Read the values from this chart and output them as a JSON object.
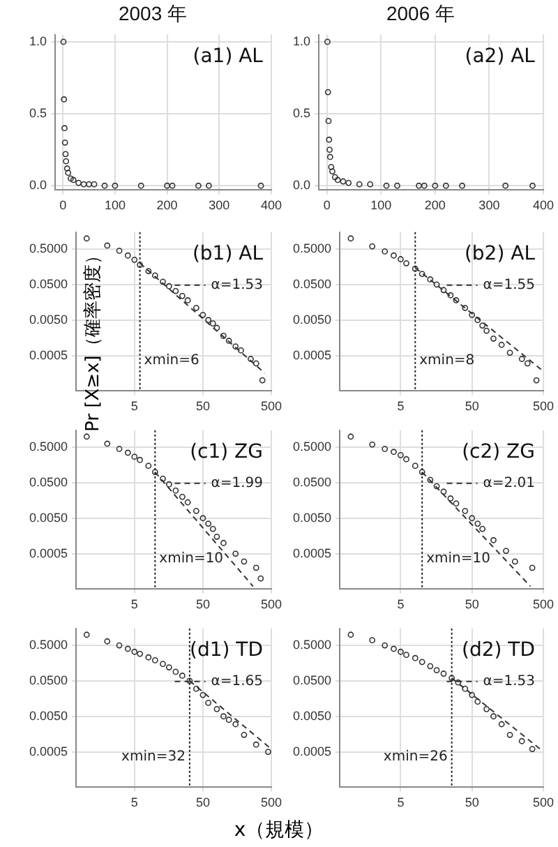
{
  "chart_data": [
    {
      "type": "scatter",
      "title": "2003 年",
      "annotations": [
        "(a1) AL"
      ],
      "xlim": [
        -15,
        400
      ],
      "ylim": [
        -0.03,
        1.05
      ],
      "xticks": [
        0,
        100,
        200,
        300,
        400
      ],
      "yticks": [
        {
          "value": 0,
          "label": "0.0"
        },
        {
          "value": 0.5,
          "label": "0.5"
        },
        {
          "value": 1,
          "label": "1.0"
        }
      ],
      "grid": true,
      "marker": "circle",
      "series": [
        {
          "color": "#333333",
          "x": [
            1,
            2,
            3,
            4,
            5,
            6,
            8,
            10,
            15,
            20,
            30,
            40,
            50,
            60,
            80,
            100,
            150,
            200,
            210,
            260,
            280,
            380
          ],
          "values": [
            1.0,
            0.6,
            0.4,
            0.3,
            0.22,
            0.17,
            0.12,
            0.09,
            0.05,
            0.04,
            0.02,
            0.01,
            0.01,
            0.01,
            0,
            0,
            0,
            0,
            0,
            0,
            0,
            0
          ]
        }
      ]
    },
    {
      "type": "scatter",
      "title": "2006 年",
      "annotations": [
        "(a2) AL"
      ],
      "xlim": [
        -15,
        400
      ],
      "ylim": [
        -0.03,
        1.05
      ],
      "xticks": [
        0,
        100,
        200,
        300,
        400
      ],
      "yticks": [
        {
          "value": 0,
          "label": "0.0"
        },
        {
          "value": 0.5,
          "label": "0.5"
        },
        {
          "value": 1,
          "label": "1.0"
        }
      ],
      "grid": true,
      "marker": "circle",
      "series": [
        {
          "color": "#333333",
          "x": [
            1,
            2,
            3,
            4,
            5,
            6,
            8,
            10,
            15,
            20,
            30,
            40,
            60,
            80,
            110,
            130,
            170,
            180,
            200,
            220,
            250,
            330,
            380
          ],
          "values": [
            1.0,
            0.65,
            0.45,
            0.32,
            0.25,
            0.2,
            0.13,
            0.1,
            0.06,
            0.04,
            0.03,
            0.02,
            0.01,
            0.01,
            0,
            0,
            0,
            0,
            0,
            0,
            0,
            0,
            0
          ]
        }
      ]
    },
    {
      "type": "scatter",
      "annotations": [
        "(b1) AL"
      ],
      "log": "xy",
      "xlim": [
        0.7,
        500
      ],
      "ylim": [
        5e-05,
        1.5
      ],
      "xticks": [
        5,
        50,
        500
      ],
      "yticks": [
        {
          "value": 0.5,
          "label": "0.5000"
        },
        {
          "value": 0.05,
          "label": "0.0500"
        },
        {
          "value": 0.005,
          "label": "0.0050"
        },
        {
          "value": 0.0005,
          "label": "0.0005"
        }
      ],
      "grid": true,
      "marker": "circle",
      "line_style": "dashed",
      "legend": "top right",
      "ref_lines": [
        {
          "axis": "x",
          "value": 6,
          "label": "xmin=6",
          "line_style": "dotted"
        }
      ],
      "series": [
        {
          "color": "#333333",
          "x": [
            1,
            2,
            3,
            4,
            5,
            6,
            8,
            10,
            13,
            16,
            20,
            25,
            30,
            40,
            50,
            60,
            70,
            80,
            100,
            120,
            150,
            180,
            250,
            300,
            370
          ],
          "values": [
            1.0,
            0.63,
            0.45,
            0.33,
            0.25,
            0.18,
            0.12,
            0.09,
            0.06,
            0.045,
            0.033,
            0.024,
            0.018,
            0.011,
            0.007,
            0.005,
            0.004,
            0.003,
            0.0018,
            0.0013,
            0.0009,
            0.0007,
            0.0004,
            0.0003,
            0.0001
          ]
        },
        {
          "type": "line",
          "name": "α=1.53",
          "marker": "none",
          "color": "#333333",
          "x": [
            6,
            400
          ],
          "values": [
            0.2,
            0.00016
          ]
        }
      ]
    },
    {
      "type": "scatter",
      "annotations": [
        "(b2) AL"
      ],
      "log": "xy",
      "xlim": [
        0.7,
        500
      ],
      "ylim": [
        5e-05,
        1.5
      ],
      "xticks": [
        5,
        50,
        500
      ],
      "yticks": [
        {
          "value": 0.5,
          "label": "0.5000"
        },
        {
          "value": 0.05,
          "label": "0.0500"
        },
        {
          "value": 0.005,
          "label": "0.0050"
        },
        {
          "value": 0.0005,
          "label": "0.0005"
        }
      ],
      "grid": true,
      "marker": "circle",
      "line_style": "dashed",
      "legend": "top right",
      "ref_lines": [
        {
          "axis": "x",
          "value": 8,
          "label": "xmin=8",
          "line_style": "dotted"
        }
      ],
      "series": [
        {
          "color": "#333333",
          "x": [
            1,
            2,
            3,
            4,
            5,
            6,
            8,
            10,
            13,
            16,
            20,
            25,
            30,
            40,
            50,
            60,
            70,
            80,
            100,
            130,
            170,
            250,
            300,
            400
          ],
          "values": [
            1.0,
            0.6,
            0.43,
            0.33,
            0.26,
            0.2,
            0.14,
            0.1,
            0.07,
            0.05,
            0.035,
            0.025,
            0.018,
            0.011,
            0.007,
            0.005,
            0.0035,
            0.0025,
            0.0015,
            0.001,
            0.0006,
            0.0004,
            0.0003,
            0.0001
          ]
        },
        {
          "type": "line",
          "name": "α=1.55",
          "marker": "none",
          "color": "#333333",
          "x": [
            8,
            500
          ],
          "values": [
            0.15,
            0.00018
          ]
        }
      ]
    },
    {
      "type": "scatter",
      "annotations": [
        "(c1) ZG"
      ],
      "ylabel": "Pr [X≥x]（確率密度）",
      "log": "xy",
      "xlim": [
        0.7,
        500
      ],
      "ylim": [
        5e-05,
        1.5
      ],
      "xticks": [
        5,
        50,
        500
      ],
      "yticks": [
        {
          "value": 0.5,
          "label": "0.5000"
        },
        {
          "value": 0.05,
          "label": "0.0500"
        },
        {
          "value": 0.005,
          "label": "0.0050"
        },
        {
          "value": 0.0005,
          "label": "0.0005"
        }
      ],
      "grid": true,
      "marker": "circle",
      "line_style": "dashed",
      "legend": "top right",
      "ref_lines": [
        {
          "axis": "x",
          "value": 10,
          "label": "xmin=10",
          "line_style": "dotted"
        }
      ],
      "series": [
        {
          "color": "#333333",
          "x": [
            1,
            2,
            3,
            4,
            5,
            6,
            8,
            10,
            13,
            16,
            20,
            25,
            30,
            40,
            50,
            60,
            70,
            80,
            100,
            150,
            200,
            300,
            350
          ],
          "values": [
            1.0,
            0.63,
            0.45,
            0.35,
            0.27,
            0.22,
            0.15,
            0.1,
            0.065,
            0.045,
            0.03,
            0.02,
            0.014,
            0.008,
            0.005,
            0.0035,
            0.0025,
            0.0015,
            0.001,
            0.0005,
            0.0003,
            0.0002,
            0.0001
          ]
        },
        {
          "type": "line",
          "name": "α=1.99",
          "marker": "none",
          "color": "#333333",
          "x": [
            10,
            270
          ],
          "values": [
            0.1,
            6e-05
          ]
        }
      ]
    },
    {
      "type": "scatter",
      "annotations": [
        "(c2) ZG"
      ],
      "log": "xy",
      "xlim": [
        0.7,
        500
      ],
      "ylim": [
        5e-05,
        1.5
      ],
      "xticks": [
        5,
        50,
        500
      ],
      "yticks": [
        {
          "value": 0.5,
          "label": "0.5000"
        },
        {
          "value": 0.05,
          "label": "0.0500"
        },
        {
          "value": 0.005,
          "label": "0.0050"
        },
        {
          "value": 0.0005,
          "label": "0.0005"
        }
      ],
      "grid": true,
      "marker": "circle",
      "line_style": "dashed",
      "legend": "top right",
      "ref_lines": [
        {
          "axis": "x",
          "value": 10,
          "label": "xmin=10",
          "line_style": "dotted"
        }
      ],
      "series": [
        {
          "color": "#333333",
          "x": [
            1,
            2,
            3,
            4,
            5,
            6,
            8,
            10,
            13,
            16,
            20,
            25,
            30,
            40,
            50,
            60,
            70,
            100,
            150,
            200,
            350
          ],
          "values": [
            1.0,
            0.6,
            0.45,
            0.37,
            0.3,
            0.23,
            0.15,
            0.1,
            0.06,
            0.04,
            0.028,
            0.018,
            0.013,
            0.008,
            0.005,
            0.0035,
            0.0025,
            0.0012,
            0.0006,
            0.0003,
            0.0002
          ]
        },
        {
          "type": "line",
          "name": "α=2.01",
          "marker": "none",
          "color": "#333333",
          "x": [
            10,
            330
          ],
          "values": [
            0.1,
            6e-05
          ]
        }
      ]
    },
    {
      "type": "scatter",
      "annotations": [
        "(d1) TD"
      ],
      "xlabel": "x（規模）",
      "log": "xy",
      "xlim": [
        0.7,
        500
      ],
      "ylim": [
        5e-05,
        1.5
      ],
      "xticks": [
        5,
        50,
        500
      ],
      "yticks": [
        {
          "value": 0.5,
          "label": "0.5000"
        },
        {
          "value": 0.05,
          "label": "0.0500"
        },
        {
          "value": 0.005,
          "label": "0.0050"
        },
        {
          "value": 0.0005,
          "label": "0.0005"
        }
      ],
      "grid": true,
      "marker": "circle",
      "line_style": "dashed",
      "legend": "top right",
      "ref_lines": [
        {
          "axis": "x",
          "value": 32,
          "label": "xmin=32",
          "line_style": "dotted"
        }
      ],
      "series": [
        {
          "color": "#333333",
          "x": [
            1,
            2,
            3,
            4,
            5,
            6,
            8,
            10,
            13,
            16,
            20,
            25,
            32,
            40,
            50,
            60,
            80,
            100,
            120,
            150,
            200,
            300,
            450
          ],
          "values": [
            1.0,
            0.65,
            0.5,
            0.4,
            0.33,
            0.29,
            0.23,
            0.19,
            0.15,
            0.12,
            0.09,
            0.07,
            0.05,
            0.03,
            0.02,
            0.012,
            0.008,
            0.005,
            0.004,
            0.003,
            0.0015,
            0.0008,
            0.0005
          ]
        },
        {
          "type": "line",
          "name": "α=1.65",
          "marker": "none",
          "color": "#333333",
          "x": [
            32,
            500
          ],
          "values": [
            0.05,
            0.0006
          ]
        }
      ]
    },
    {
      "type": "scatter",
      "annotations": [
        "(d2) TD"
      ],
      "log": "xy",
      "xlim": [
        0.7,
        500
      ],
      "ylim": [
        5e-05,
        1.5
      ],
      "xticks": [
        5,
        50,
        500
      ],
      "yticks": [
        {
          "value": 0.5,
          "label": "0.5000"
        },
        {
          "value": 0.05,
          "label": "0.0500"
        },
        {
          "value": 0.005,
          "label": "0.0050"
        },
        {
          "value": 0.0005,
          "label": "0.0005"
        }
      ],
      "grid": true,
      "marker": "circle",
      "line_style": "dashed",
      "legend": "top right",
      "ref_lines": [
        {
          "axis": "x",
          "value": 26,
          "label": "xmin=26",
          "line_style": "dotted"
        }
      ],
      "series": [
        {
          "color": "#333333",
          "x": [
            1,
            2,
            3,
            4,
            5,
            6,
            8,
            10,
            13,
            16,
            20,
            26,
            32,
            40,
            50,
            60,
            80,
            100,
            130,
            170,
            250,
            350
          ],
          "values": [
            1.0,
            0.7,
            0.5,
            0.4,
            0.33,
            0.27,
            0.22,
            0.17,
            0.13,
            0.1,
            0.08,
            0.06,
            0.045,
            0.03,
            0.02,
            0.013,
            0.008,
            0.005,
            0.003,
            0.0015,
            0.001,
            0.0006
          ]
        },
        {
          "type": "line",
          "name": "α=1.53",
          "marker": "none",
          "color": "#333333",
          "x": [
            26,
            450
          ],
          "values": [
            0.06,
            0.0006
          ]
        }
      ]
    }
  ]
}
